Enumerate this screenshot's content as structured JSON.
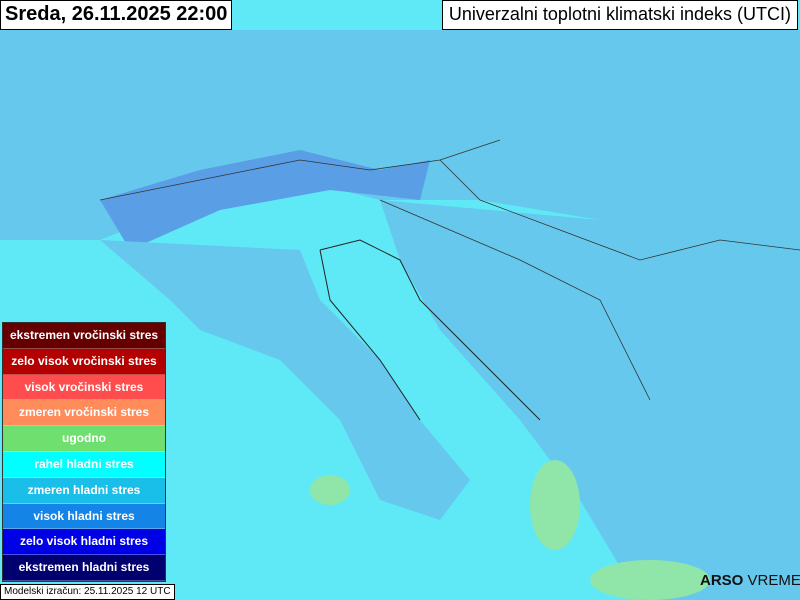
{
  "header": {
    "date": "Sreda, 26.11.2025 22:00",
    "title": "Univerzalni toplotni klimatski indeks (UTCI)"
  },
  "legend": [
    {
      "label": "ekstremen vročinski stres",
      "color": "#660000"
    },
    {
      "label": "zelo visok vročinski stres",
      "color": "#b30000"
    },
    {
      "label": "visok vročinski stres",
      "color": "#ff4d4d"
    },
    {
      "label": "zmeren vročinski stres",
      "color": "#ff8c5a"
    },
    {
      "label": "ugodno",
      "color": "#6fe06f"
    },
    {
      "label": "rahel hladni stres",
      "color": "#00ffff"
    },
    {
      "label": "zmeren hladni stres",
      "color": "#19bfe8"
    },
    {
      "label": "visok hladni stres",
      "color": "#1484e6"
    },
    {
      "label": "zelo visok hladni stres",
      "color": "#0000e6"
    },
    {
      "label": "ekstremen hladni stres",
      "color": "#00006e"
    }
  ],
  "footer": {
    "model": "Modelski izračun: 25.11.2025 12 UTC",
    "logo_a": "ARSO",
    "logo_b": "VREME"
  }
}
